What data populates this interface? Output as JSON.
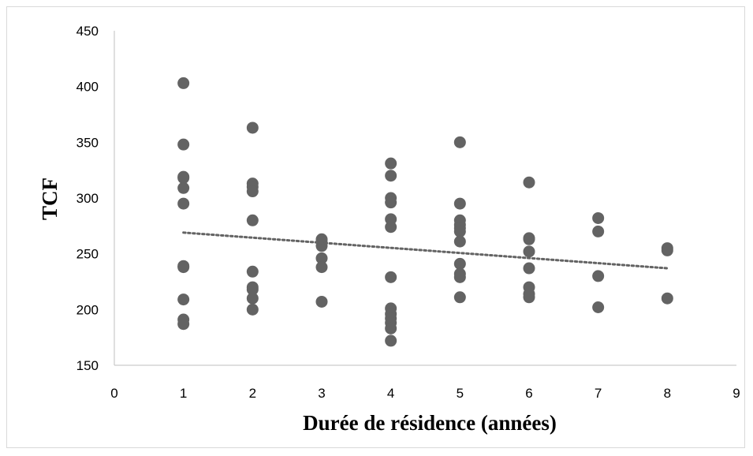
{
  "chart_data": {
    "type": "scatter",
    "xlabel": "Durée de résidence (années)",
    "ylabel": "TCF",
    "xlim": [
      0,
      9
    ],
    "ylim": [
      150,
      450
    ],
    "xticks": [
      0,
      1,
      2,
      3,
      4,
      5,
      6,
      7,
      8,
      9
    ],
    "yticks": [
      150,
      200,
      250,
      300,
      350,
      400,
      450
    ],
    "xtick_labels": [
      "0",
      "1",
      "2",
      "3",
      "4",
      "5",
      "6",
      "7",
      "8",
      "9"
    ],
    "ytick_labels": [
      "150",
      "200",
      "250",
      "300",
      "350",
      "400",
      "450"
    ],
    "grid": false,
    "legend": "none",
    "marker_color": "#636363",
    "trendline": {
      "style": "dotted",
      "color": "#636363",
      "x": [
        1,
        8
      ],
      "y": [
        269,
        237
      ]
    },
    "series": [
      {
        "points": [
          [
            1,
            403
          ],
          [
            1,
            348
          ],
          [
            1,
            319
          ],
          [
            1,
            318
          ],
          [
            1,
            309
          ],
          [
            1,
            295
          ],
          [
            1,
            239
          ],
          [
            1,
            238
          ],
          [
            1,
            209
          ],
          [
            1,
            191
          ],
          [
            1,
            187
          ],
          [
            2,
            363
          ],
          [
            2,
            313
          ],
          [
            2,
            310
          ],
          [
            2,
            306
          ],
          [
            2,
            280
          ],
          [
            2,
            234
          ],
          [
            2,
            220
          ],
          [
            2,
            218
          ],
          [
            2,
            210
          ],
          [
            2,
            200
          ],
          [
            3,
            263
          ],
          [
            3,
            261
          ],
          [
            3,
            257
          ],
          [
            3,
            246
          ],
          [
            3,
            238
          ],
          [
            3,
            207
          ],
          [
            4,
            331
          ],
          [
            4,
            320
          ],
          [
            4,
            300
          ],
          [
            4,
            296
          ],
          [
            4,
            281
          ],
          [
            4,
            274
          ],
          [
            4,
            229
          ],
          [
            4,
            201
          ],
          [
            4,
            196
          ],
          [
            4,
            192
          ],
          [
            4,
            188
          ],
          [
            4,
            183
          ],
          [
            4,
            172
          ],
          [
            5,
            350
          ],
          [
            5,
            295
          ],
          [
            5,
            280
          ],
          [
            5,
            276
          ],
          [
            5,
            273
          ],
          [
            5,
            270
          ],
          [
            5,
            261
          ],
          [
            5,
            241
          ],
          [
            5,
            232
          ],
          [
            5,
            229
          ],
          [
            5,
            211
          ],
          [
            6,
            314
          ],
          [
            6,
            264
          ],
          [
            6,
            263
          ],
          [
            6,
            252
          ],
          [
            6,
            237
          ],
          [
            6,
            220
          ],
          [
            6,
            214
          ],
          [
            6,
            211
          ],
          [
            7,
            282
          ],
          [
            7,
            270
          ],
          [
            7,
            230
          ],
          [
            7,
            202
          ],
          [
            8,
            255
          ],
          [
            8,
            253
          ],
          [
            8,
            210
          ]
        ]
      }
    ]
  }
}
